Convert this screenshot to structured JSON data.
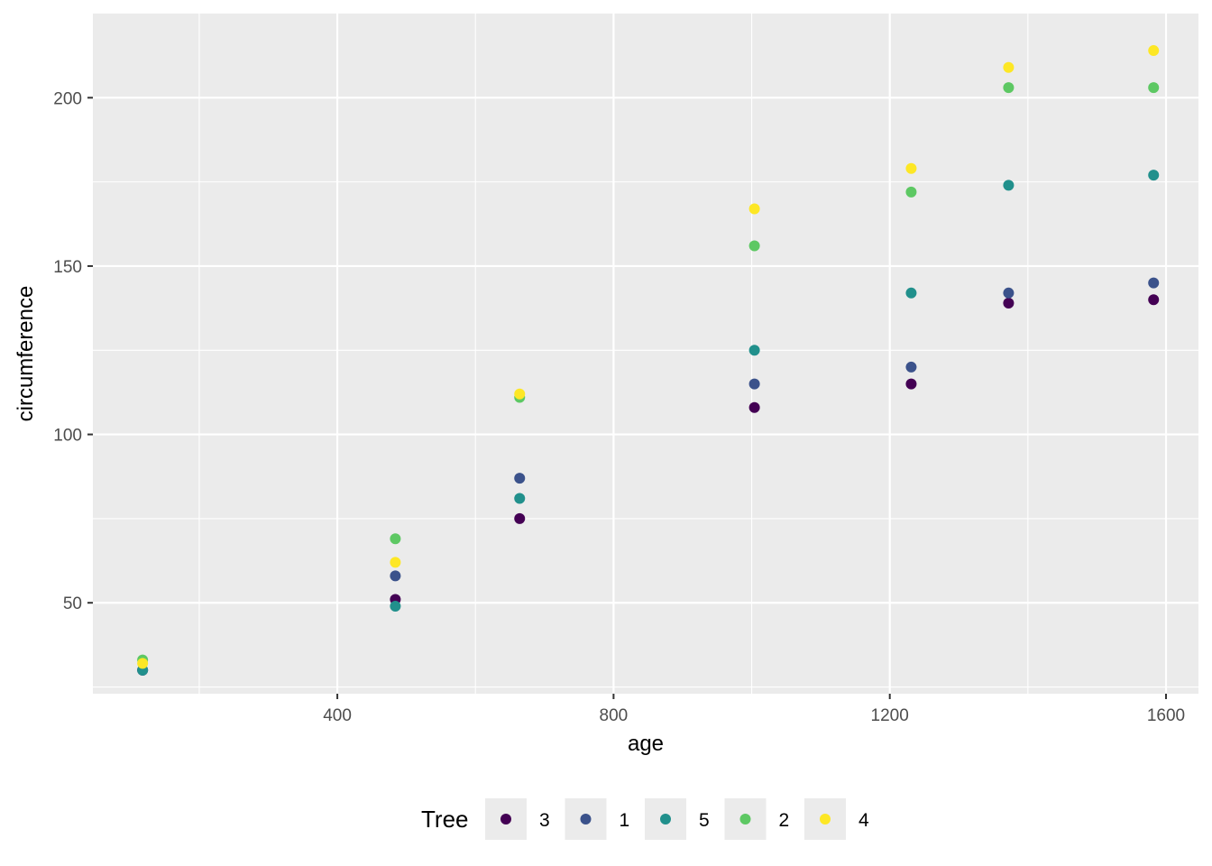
{
  "chart_data": {
    "type": "scatter",
    "title": "",
    "xlabel": "age",
    "ylabel": "circumference",
    "xlim": [
      46,
      1647
    ],
    "ylim": [
      23,
      225
    ],
    "x_ticks": [
      400,
      800,
      1200,
      1600
    ],
    "y_ticks": [
      50,
      100,
      150,
      200
    ],
    "grid": true,
    "legend": {
      "title": "Tree",
      "position": "bottom"
    },
    "x": [
      118,
      484,
      664,
      1004,
      1231,
      1372,
      1582
    ],
    "series": [
      {
        "name": "3",
        "color": "#440154",
        "values": [
          30,
          51,
          75,
          108,
          115,
          139,
          140
        ]
      },
      {
        "name": "1",
        "color": "#3B528B",
        "values": [
          30,
          58,
          87,
          115,
          120,
          142,
          145
        ]
      },
      {
        "name": "5",
        "color": "#21908C",
        "values": [
          30,
          49,
          81,
          125,
          142,
          174,
          177
        ]
      },
      {
        "name": "2",
        "color": "#5DC863",
        "values": [
          33,
          69,
          111,
          156,
          172,
          203,
          203
        ]
      },
      {
        "name": "4",
        "color": "#FDE725",
        "values": [
          32,
          62,
          112,
          167,
          179,
          209,
          214
        ]
      }
    ]
  }
}
